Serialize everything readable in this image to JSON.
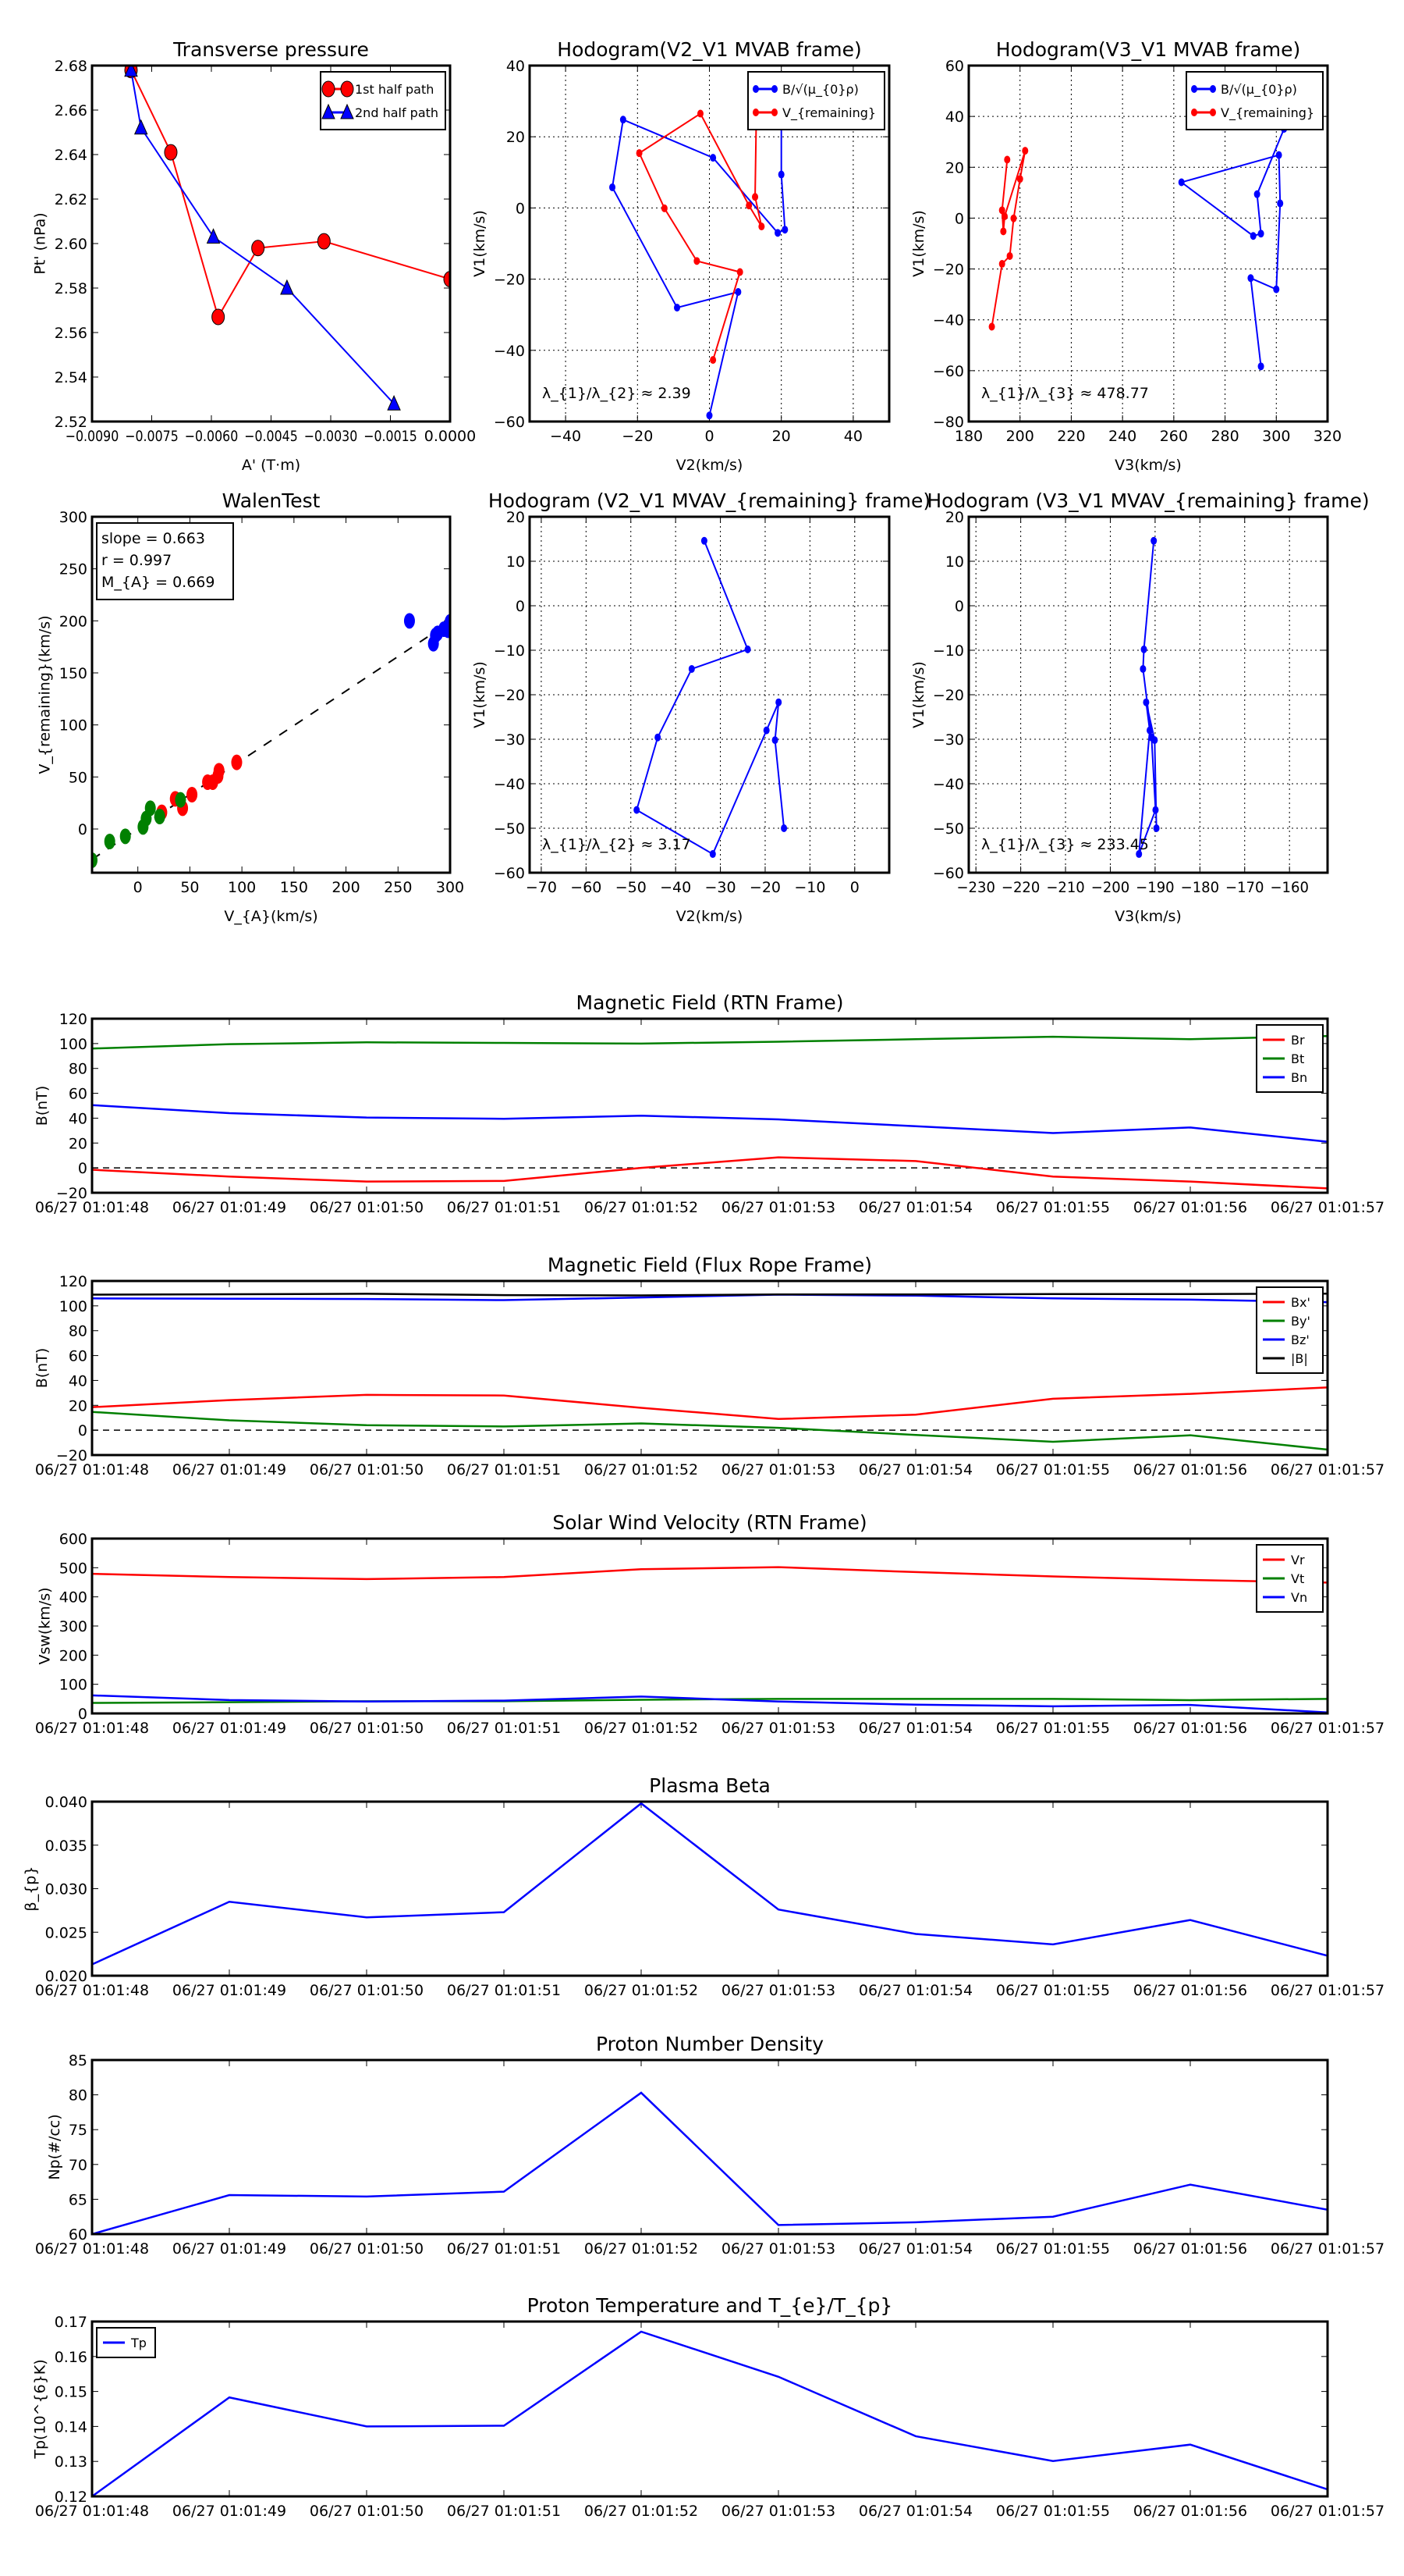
{
  "chart_data": [
    {
      "id": "transverse-pressure",
      "kind": "xy",
      "type": "line",
      "title": "Transverse pressure",
      "xlabel": "A' (T·m)",
      "ylabel": "Pt' (nPa)",
      "xlim": [
        -0.009,
        0.0
      ],
      "ylim": [
        2.52,
        2.68
      ],
      "grid": false,
      "xticks": [
        -0.009,
        -0.0075,
        -0.006,
        -0.0045,
        -0.003,
        -0.0015,
        0.0
      ],
      "xticklabels": [
        "−0.0090",
        "−0.0075",
        "−0.0060",
        "−0.0045",
        "−0.0030",
        "−0.0015",
        "0.0000"
      ],
      "yticks": [
        2.52,
        2.54,
        2.56,
        2.58,
        2.6,
        2.62,
        2.64,
        2.66,
        2.68
      ],
      "yticklabels": [
        "2.52",
        "2.54",
        "2.56",
        "2.58",
        "2.60",
        "2.62",
        "2.64",
        "2.66",
        "2.68"
      ],
      "legend": "upper-right",
      "series": [
        {
          "name": "1st half path",
          "color": "#ff0000",
          "marker": "circle",
          "x": [
            -0.00802,
            -0.00702,
            -0.00583,
            -0.00483,
            -0.00317,
            0.0
          ],
          "y": [
            2.678,
            2.641,
            2.567,
            2.598,
            2.601,
            2.584
          ]
        },
        {
          "name": "2nd half path",
          "color": "#0000ff",
          "marker": "triangle",
          "x": [
            -0.00802,
            -0.00777,
            -0.00595,
            -0.0041,
            -0.00141
          ],
          "y": [
            2.678,
            2.652,
            2.603,
            2.58,
            2.528
          ]
        }
      ]
    },
    {
      "id": "hodogram-v2-v1-mvab",
      "kind": "xy",
      "type": "line",
      "title": "Hodogram(V2_V1 MVAB frame)",
      "xlabel": "V2(km/s)",
      "ylabel": "V1(km/s)",
      "xlim": [
        -50,
        50
      ],
      "ylim": [
        -60,
        40
      ],
      "grid": true,
      "xticks": [
        -40,
        -20,
        0,
        20,
        40
      ],
      "xticklabels": [
        "−40",
        "−20",
        "0",
        "20",
        "40"
      ],
      "yticks": [
        -60,
        -40,
        -20,
        0,
        20,
        40
      ],
      "yticklabels": [
        "−60",
        "−40",
        "−20",
        "0",
        "20",
        "40"
      ],
      "legend": "upper-right",
      "annotation": "λ_{1}/λ_{2} ≈ 2.39",
      "series": [
        {
          "name": "B/√(μ_{0}ρ)",
          "color": "#0000ff",
          "marker": "dot",
          "x": [
            20,
            20,
            21,
            19,
            1,
            -24,
            -27,
            -9,
            8,
            0
          ],
          "y": [
            35.1,
            9.4,
            -6.1,
            -7,
            14.1,
            24.8,
            5.8,
            -28,
            -23.6,
            -58.3
          ]
        },
        {
          "name": "V_{remaining}",
          "color": "#ff0000",
          "marker": "dot",
          "x": [
            13,
            12.7,
            14.5,
            11,
            -2.5,
            -19.5,
            -12.5,
            -3.5,
            8.5,
            1
          ],
          "y": [
            23,
            3.1,
            -5.2,
            0.7,
            26.5,
            15.4,
            -0.1,
            -14.9,
            -18,
            -42.7
          ]
        }
      ]
    },
    {
      "id": "hodogram-v3-v1-mvab",
      "kind": "xy",
      "type": "line",
      "title": "Hodogram(V3_V1 MVAB frame)",
      "xlabel": "V3(km/s)",
      "ylabel": "V1(km/s)",
      "xlim": [
        180,
        320
      ],
      "ylim": [
        -80,
        60
      ],
      "grid": true,
      "xticks": [
        180,
        200,
        220,
        240,
        260,
        280,
        300,
        320
      ],
      "xticklabels": [
        "180",
        "200",
        "220",
        "240",
        "260",
        "280",
        "300",
        "320"
      ],
      "yticks": [
        -80,
        -60,
        -40,
        -20,
        0,
        20,
        40,
        60
      ],
      "yticklabels": [
        "−80",
        "−60",
        "−40",
        "−20",
        "0",
        "20",
        "40",
        "60"
      ],
      "legend": "upper-right",
      "annotation": "λ_{1}/λ_{3} ≈ 478.77",
      "series": [
        {
          "name": "B/√(μ_{0}ρ)",
          "color": "#0000ff",
          "marker": "dot",
          "x": [
            303,
            292.5,
            294,
            291,
            263,
            301,
            301.5,
            300,
            290,
            294
          ],
          "y": [
            35.1,
            9.4,
            -6.1,
            -7,
            14.1,
            24.8,
            5.8,
            -28,
            -23.6,
            -58.3
          ]
        },
        {
          "name": "V_{remaining}",
          "color": "#ff0000",
          "marker": "dot",
          "x": [
            195,
            193,
            193.5,
            194,
            202,
            200,
            197.5,
            196,
            193,
            189
          ],
          "y": [
            23,
            3.1,
            -5.2,
            0.7,
            26.5,
            15.4,
            -0.1,
            -14.9,
            -18,
            -42.7
          ]
        }
      ]
    },
    {
      "id": "walen-test",
      "kind": "xy",
      "type": "scatter",
      "title": "WalenTest",
      "xlabel": "V_{A}(km/s)",
      "ylabel": "V_{remaining}(km/s)",
      "xlim": [
        -44,
        300
      ],
      "ylim": [
        -42,
        300
      ],
      "grid": false,
      "xticks": [
        0,
        50,
        100,
        150,
        200,
        250,
        300
      ],
      "xticklabels": [
        "0",
        "50",
        "100",
        "150",
        "200",
        "250",
        "300"
      ],
      "yticks": [
        0,
        50,
        100,
        150,
        200,
        250,
        300
      ],
      "yticklabels": [
        "0",
        "50",
        "100",
        "150",
        "200",
        "250",
        "300"
      ],
      "textbox": [
        "slope = 0.663",
        "r = 0.997",
        "M_{A} = 0.669"
      ],
      "fit_line": {
        "slope": 0.663,
        "intercept": 0,
        "color": "#000000"
      },
      "series": [
        {
          "color": "#0000ff",
          "marker": "ellipse",
          "nolines": true,
          "x": [
            261,
            286,
            284,
            288,
            298,
            302,
            300,
            294
          ],
          "y": [
            200,
            186,
            178,
            188,
            191,
            193,
            199,
            192
          ]
        },
        {
          "color": "#ff0000",
          "marker": "ellipse",
          "nolines": true,
          "x": [
            95,
            78,
            77,
            72,
            67,
            52,
            36,
            43,
            23
          ],
          "y": [
            64,
            56,
            51,
            45,
            45,
            33,
            29,
            20,
            16
          ]
        },
        {
          "color": "#008000",
          "marker": "ellipse",
          "nolines": true,
          "x": [
            41,
            12,
            8,
            5,
            -12,
            -27,
            -44,
            21
          ],
          "y": [
            28,
            20,
            10,
            2,
            -7,
            -12,
            -30,
            12
          ]
        }
      ]
    },
    {
      "id": "hodogram-v2-v1-mvav",
      "kind": "xy",
      "type": "line",
      "title": "Hodogram (V2_V1 MVAV_{remaining} frame)",
      "xlabel": "V2(km/s)",
      "ylabel": "V1(km/s)",
      "xlim": [
        -72.6,
        7.7
      ],
      "ylim": [
        -60,
        20
      ],
      "grid": true,
      "xticks": [
        -70,
        -60,
        -50,
        -40,
        -30,
        -20,
        -10,
        0
      ],
      "xticklabels": [
        "−70",
        "−60",
        "−50",
        "−40",
        "−30",
        "−20",
        "−10",
        "0"
      ],
      "yticks": [
        -60,
        -50,
        -40,
        -30,
        -20,
        -10,
        0,
        10,
        20
      ],
      "yticklabels": [
        "−60",
        "−50",
        "−40",
        "−30",
        "−20",
        "−10",
        "0",
        "10",
        "20"
      ],
      "annotation": "λ_{1}/λ_{2} ≈ 3.17",
      "series": [
        {
          "color": "#0000ff",
          "marker": "dot",
          "x": [
            -33.6,
            -23.9,
            -36.4,
            -44,
            -48.7,
            -31.7,
            -19.7,
            -17,
            -17.8,
            -15.8
          ],
          "y": [
            14.6,
            -9.8,
            -14.2,
            -29.6,
            -45.9,
            -55.8,
            -28,
            -21.7,
            -30.2,
            -50
          ]
        }
      ]
    },
    {
      "id": "hodogram-v3-v1-mvav",
      "kind": "xy",
      "type": "line",
      "title": "Hodogram (V3_V1 MVAV_{remaining} frame)",
      "xlabel": "V3(km/s)",
      "ylabel": "V1(km/s)",
      "xlim": [
        -231.6,
        -151.5
      ],
      "ylim": [
        -60,
        20
      ],
      "grid": true,
      "xticks": [
        -230,
        -220,
        -210,
        -200,
        -190,
        -180,
        -170,
        -160
      ],
      "xticklabels": [
        "−230",
        "−220",
        "−210",
        "−200",
        "−190",
        "−180",
        "−170",
        "−160"
      ],
      "yticks": [
        -60,
        -50,
        -40,
        -30,
        -20,
        -10,
        0,
        10,
        20
      ],
      "yticklabels": [
        "−60",
        "−50",
        "−40",
        "−30",
        "−20",
        "−10",
        "0",
        "10",
        "20"
      ],
      "annotation": "λ_{1}/λ_{3} ≈ 233.45",
      "series": [
        {
          "color": "#0000ff",
          "marker": "dot",
          "x": [
            -190.3,
            -192.5,
            -192.7,
            -190.8,
            -189.9,
            -193.6,
            -191.2,
            -192,
            -190.1,
            -189.7
          ],
          "y": [
            14.6,
            -9.8,
            -14.2,
            -29.6,
            -45.9,
            -55.8,
            -28,
            -21.7,
            -30.2,
            -50
          ]
        }
      ]
    },
    {
      "id": "magnetic-field-rtn",
      "kind": "timeseries",
      "type": "line",
      "title": "Magnetic Field (RTN Frame)",
      "ylabel": "B(nT)",
      "categories": [
        "06/27 01:01:48",
        "06/27 01:01:49",
        "06/27 01:01:50",
        "06/27 01:01:51",
        "06/27 01:01:52",
        "06/27 01:01:53",
        "06/27 01:01:54",
        "06/27 01:01:55",
        "06/27 01:01:56",
        "06/27 01:01:57"
      ],
      "ylim": [
        -20,
        120
      ],
      "yticks": [
        -20,
        0,
        20,
        40,
        60,
        80,
        100,
        120
      ],
      "yticklabels": [
        "−20",
        "0",
        "20",
        "40",
        "60",
        "80",
        "100",
        "120"
      ],
      "hline": 0,
      "legend": "upper-right",
      "series": [
        {
          "name": "Br",
          "color": "#ff0000",
          "y": [
            -1.5,
            -7,
            -11,
            -10.5,
            0,
            8.5,
            5.5,
            -7,
            -11,
            -16.5
          ]
        },
        {
          "name": "Bt",
          "color": "#008000",
          "y": [
            96,
            99.5,
            101,
            100.5,
            100,
            101.5,
            103.5,
            105.5,
            103.5,
            106
          ]
        },
        {
          "name": "Bn",
          "color": "#0000ff",
          "y": [
            50.5,
            44,
            40.5,
            39.5,
            42,
            39,
            33.5,
            28,
            32.5,
            21
          ]
        }
      ]
    },
    {
      "id": "magnetic-field-flux-rope",
      "kind": "timeseries",
      "type": "line",
      "title": "Magnetic Field (Flux Rope Frame)",
      "ylabel": "B(nT)",
      "categories": [
        "06/27 01:01:48",
        "06/27 01:01:49",
        "06/27 01:01:50",
        "06/27 01:01:51",
        "06/27 01:01:52",
        "06/27 01:01:53",
        "06/27 01:01:54",
        "06/27 01:01:55",
        "06/27 01:01:56",
        "06/27 01:01:57"
      ],
      "ylim": [
        -20,
        120
      ],
      "yticks": [
        -20,
        0,
        20,
        40,
        60,
        80,
        100,
        120
      ],
      "yticklabels": [
        "−20",
        "0",
        "20",
        "40",
        "60",
        "80",
        "100",
        "120"
      ],
      "hline": 0,
      "legend": "upper-right",
      "series": [
        {
          "name": "Bx'",
          "color": "#ff0000",
          "y": [
            18.5,
            24.2,
            28.4,
            27.9,
            18,
            9,
            12.5,
            25.3,
            29.2,
            34.4
          ]
        },
        {
          "name": "By'",
          "color": "#008000",
          "y": [
            14.7,
            7.9,
            4,
            3,
            5.4,
            1.9,
            -3.8,
            -9.3,
            -4.1,
            -15.6
          ]
        },
        {
          "name": "Bz'",
          "color": "#0000ff",
          "y": [
            106,
            105.7,
            105.5,
            104.6,
            106.7,
            109,
            108.2,
            106,
            105,
            103
          ]
        },
        {
          "name": "|B|",
          "color": "#000000",
          "y": [
            109,
            109.3,
            109.7,
            108.6,
            108.4,
            109.2,
            109.2,
            109.5,
            109.5,
            109.8
          ]
        }
      ]
    },
    {
      "id": "solar-wind-velocity",
      "kind": "timeseries",
      "type": "line",
      "title": "Solar Wind Velocity (RTN Frame)",
      "ylabel": "Vsw(km/s)",
      "categories": [
        "06/27 01:01:48",
        "06/27 01:01:49",
        "06/27 01:01:50",
        "06/27 01:01:51",
        "06/27 01:01:52",
        "06/27 01:01:53",
        "06/27 01:01:54",
        "06/27 01:01:55",
        "06/27 01:01:56",
        "06/27 01:01:57"
      ],
      "ylim": [
        0,
        600
      ],
      "yticks": [
        0,
        100,
        200,
        300,
        400,
        500,
        600
      ],
      "yticklabels": [
        "0",
        "100",
        "200",
        "300",
        "400",
        "500",
        "600"
      ],
      "legend": "upper-right",
      "series": [
        {
          "name": "Vr",
          "color": "#ff0000",
          "y": [
            479,
            468,
            461,
            468,
            495,
            502,
            485,
            470,
            458,
            449
          ]
        },
        {
          "name": "Vt",
          "color": "#008000",
          "y": [
            36,
            38.5,
            42,
            42,
            47,
            50,
            50,
            50,
            45.5,
            50
          ]
        },
        {
          "name": "Vn",
          "color": "#0000ff",
          "y": [
            62,
            46,
            41,
            44,
            58,
            41,
            30,
            24.5,
            29,
            3.5
          ]
        }
      ]
    },
    {
      "id": "plasma-beta",
      "kind": "timeseries",
      "type": "line",
      "title": "Plasma Beta",
      "ylabel": "β_{p}",
      "categories": [
        "06/27 01:01:48",
        "06/27 01:01:49",
        "06/27 01:01:50",
        "06/27 01:01:51",
        "06/27 01:01:52",
        "06/27 01:01:53",
        "06/27 01:01:54",
        "06/27 01:01:55",
        "06/27 01:01:56",
        "06/27 01:01:57"
      ],
      "ylim": [
        0.02,
        0.04
      ],
      "yticks": [
        0.02,
        0.025,
        0.03,
        0.035,
        0.04
      ],
      "yticklabels": [
        "0.020",
        "0.025",
        "0.030",
        "0.035",
        "0.040"
      ],
      "series": [
        {
          "color": "#0000ff",
          "y": [
            0.0213,
            0.0285,
            0.0267,
            0.0273,
            0.0398,
            0.0276,
            0.0248,
            0.0236,
            0.0264,
            0.0223
          ]
        }
      ]
    },
    {
      "id": "proton-number-density",
      "kind": "timeseries",
      "type": "line",
      "title": "Proton Number Density",
      "ylabel": "Np(#/cc)",
      "categories": [
        "06/27 01:01:48",
        "06/27 01:01:49",
        "06/27 01:01:50",
        "06/27 01:01:51",
        "06/27 01:01:52",
        "06/27 01:01:53",
        "06/27 01:01:54",
        "06/27 01:01:55",
        "06/27 01:01:56",
        "06/27 01:01:57"
      ],
      "ylim": [
        60,
        85
      ],
      "yticks": [
        60,
        65,
        70,
        75,
        80,
        85
      ],
      "yticklabels": [
        "60",
        "65",
        "70",
        "75",
        "80",
        "85"
      ],
      "series": [
        {
          "color": "#0000ff",
          "y": [
            60,
            65.6,
            65.4,
            66.1,
            80.3,
            61.3,
            61.7,
            62.5,
            67.1,
            63.5
          ]
        }
      ]
    },
    {
      "id": "proton-temperature",
      "kind": "timeseries",
      "type": "line",
      "title": "Proton Temperature and T_{e}/T_{p}",
      "ylabel": "Tp(10^{6}K)",
      "categories": [
        "06/27 01:01:48",
        "06/27 01:01:49",
        "06/27 01:01:50",
        "06/27 01:01:51",
        "06/27 01:01:52",
        "06/27 01:01:53",
        "06/27 01:01:54",
        "06/27 01:01:55",
        "06/27 01:01:56",
        "06/27 01:01:57"
      ],
      "ylim": [
        0.12,
        0.17
      ],
      "yticks": [
        0.12,
        0.13,
        0.14,
        0.15,
        0.16,
        0.17
      ],
      "yticklabels": [
        "0.12",
        "0.13",
        "0.14",
        "0.15",
        "0.16",
        "0.17"
      ],
      "legend": "upper-left",
      "series": [
        {
          "name": "Tp",
          "color": "#0000ff",
          "y": [
            0.12,
            0.1483,
            0.14,
            0.1402,
            0.1671,
            0.1542,
            0.1372,
            0.1301,
            0.1348,
            0.122
          ]
        }
      ]
    }
  ]
}
